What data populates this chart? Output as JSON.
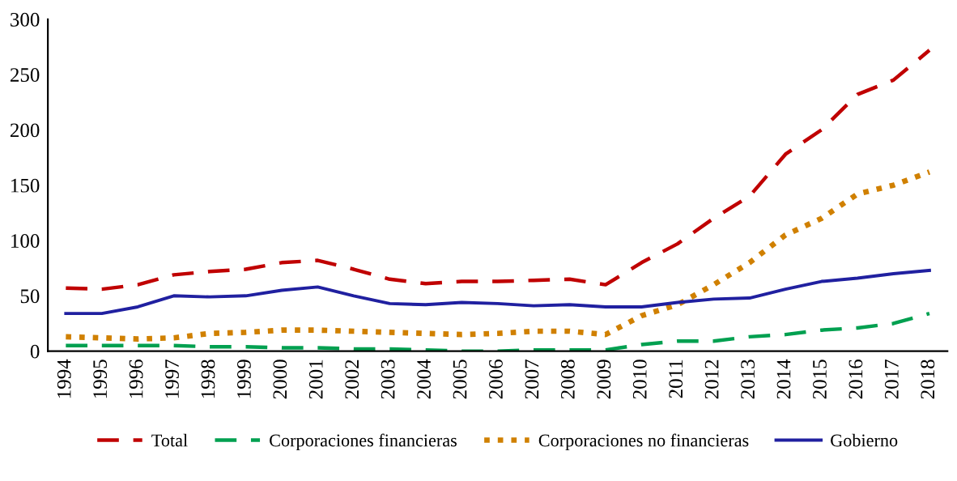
{
  "chart_data": {
    "type": "line",
    "categories": [
      "1994",
      "1995",
      "1996",
      "1997",
      "1998",
      "1999",
      "2000",
      "2001",
      "2002",
      "2003",
      "2004",
      "2005",
      "2006",
      "2007",
      "2008",
      "2009",
      "2010",
      "2011",
      "2012",
      "2013",
      "2014",
      "2015",
      "2016",
      "2017",
      "2018"
    ],
    "series": [
      {
        "name": "Total",
        "color": "#c00000",
        "line_style": "dashed",
        "values": [
          57,
          56,
          60,
          69,
          72,
          74,
          80,
          82,
          74,
          65,
          61,
          63,
          63,
          64,
          65,
          60,
          80,
          97,
          120,
          140,
          178,
          200,
          232,
          245,
          272
        ]
      },
      {
        "name": "Corporaciones financieras",
        "color": "#00a050",
        "line_style": "dashed",
        "values": [
          5,
          5,
          5,
          5,
          4,
          4,
          3,
          3,
          2,
          2,
          1,
          0,
          0,
          1,
          1,
          1,
          6,
          9,
          9,
          13,
          15,
          19,
          21,
          25,
          34
        ]
      },
      {
        "name": "Corporaciones no financieras",
        "color": "#d08000",
        "line_style": "dotted",
        "values": [
          13,
          12,
          11,
          12,
          16,
          17,
          19,
          19,
          18,
          17,
          16,
          15,
          16,
          18,
          18,
          15,
          32,
          42,
          60,
          80,
          105,
          120,
          142,
          150,
          162
        ]
      },
      {
        "name": "Gobierno",
        "color": "#2020a0",
        "line_style": "solid",
        "values": [
          34,
          34,
          40,
          50,
          49,
          50,
          55,
          58,
          50,
          43,
          42,
          44,
          43,
          41,
          42,
          40,
          40,
          44,
          47,
          48,
          56,
          63,
          66,
          70,
          73
        ]
      }
    ],
    "ylim": [
      0,
      300
    ],
    "yticks": [
      0,
      50,
      100,
      150,
      200,
      250,
      300
    ],
    "grid": false,
    "legend": "bottom",
    "marker": "none"
  }
}
